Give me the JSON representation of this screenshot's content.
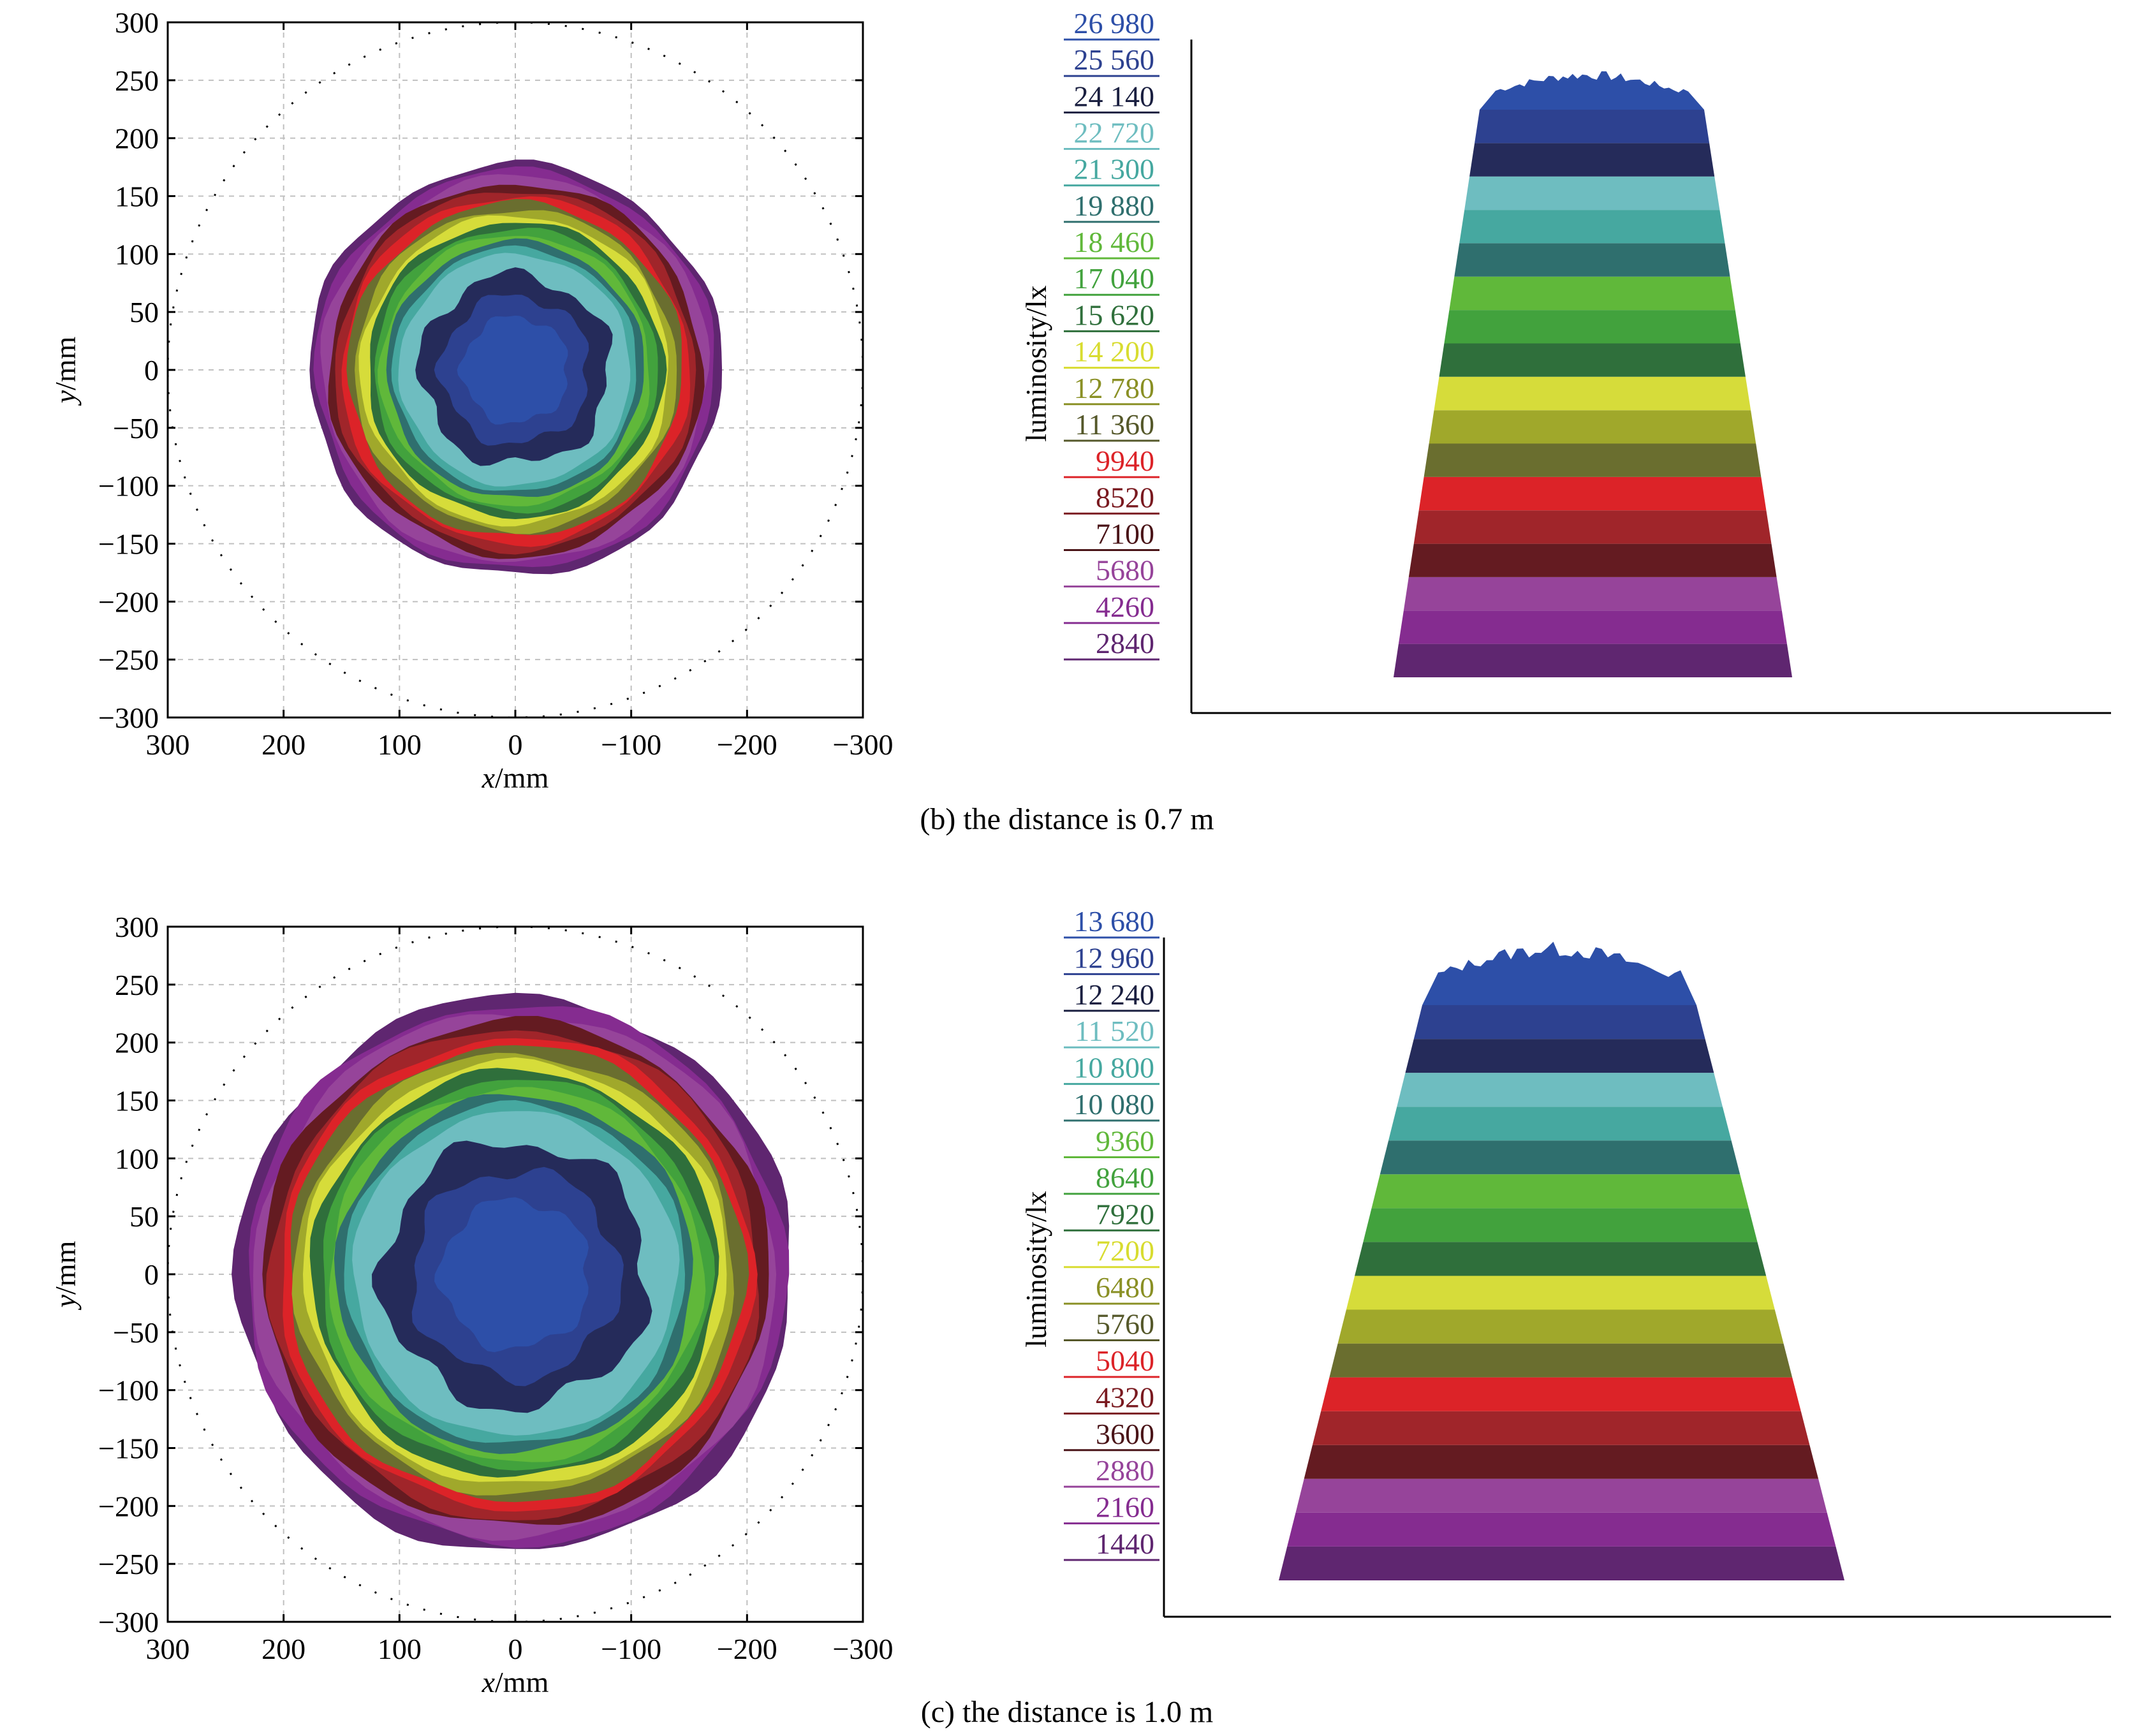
{
  "panels": [
    {
      "caption": "(b) the distance is 0.7 m",
      "contour": {
        "xlabel_var": "x",
        "xlabel_unit": "/mm",
        "ylabel_var": "y",
        "ylabel_unit": "/mm",
        "xlim": [
          300,
          -300
        ],
        "ylim": [
          -300,
          300
        ],
        "xticks": [
          300,
          200,
          100,
          0,
          -100,
          -200,
          -300
        ],
        "yticks": [
          300,
          250,
          200,
          150,
          100,
          50,
          0,
          -50,
          -100,
          -150,
          -200,
          -250,
          -300
        ],
        "xtick_labels": [
          "300",
          "200",
          "100",
          "0",
          "−100",
          "−200",
          "−300"
        ],
        "ytick_labels": [
          "300",
          "250",
          "200",
          "150",
          "100",
          "50",
          "0",
          "−50",
          "−100",
          "−150",
          "−200",
          "−250",
          "−300"
        ],
        "grid": true,
        "reference_circle_radius_mm": 300,
        "outer_radius_mm": 178,
        "inner_radius_mm": 100
      },
      "profile": {
        "ylabel": "luminosity/lx",
        "levels": [
          "2840",
          "4260",
          "5680",
          "7100",
          "8520",
          "9940",
          "11 360",
          "12 780",
          "14 200",
          "15 620",
          "17 040",
          "18 460",
          "19 880",
          "21 300",
          "22 720",
          "24 140",
          "25 560",
          "26 980"
        ],
        "level_values": [
          2840,
          4260,
          5680,
          7100,
          8520,
          9940,
          11360,
          12780,
          14200,
          15620,
          17040,
          18460,
          19880,
          21300,
          22720,
          24140,
          25560,
          26980
        ]
      }
    },
    {
      "caption": "(c) the distance is 1.0 m",
      "contour": {
        "xlabel_var": "x",
        "xlabel_unit": "/mm",
        "ylabel_var": "y",
        "ylabel_unit": "/mm",
        "xlim": [
          300,
          -300
        ],
        "ylim": [
          -300,
          300
        ],
        "xticks": [
          300,
          200,
          100,
          0,
          -100,
          -200,
          -300
        ],
        "yticks": [
          300,
          250,
          200,
          150,
          100,
          50,
          0,
          -50,
          -100,
          -150,
          -200,
          -250,
          -300
        ],
        "xtick_labels": [
          "300",
          "200",
          "100",
          "0",
          "−100",
          "−200",
          "−300"
        ],
        "ytick_labels": [
          "300",
          "250",
          "200",
          "150",
          "100",
          "50",
          "0",
          "−50",
          "−100",
          "−150",
          "−200",
          "−250",
          "−300"
        ],
        "grid": true,
        "reference_circle_radius_mm": 300,
        "outer_radius_mm": 240,
        "inner_radius_mm": 140
      },
      "profile": {
        "ylabel": "luminosity/lx",
        "levels": [
          "1440",
          "2160",
          "2880",
          "3600",
          "4320",
          "5040",
          "5760",
          "6480",
          "7200",
          "7920",
          "8640",
          "9360",
          "10 080",
          "10 800",
          "11 520",
          "12 240",
          "12 960",
          "13 680"
        ],
        "level_values": [
          1440,
          2160,
          2880,
          3600,
          4320,
          5040,
          5760,
          6480,
          7200,
          7920,
          8640,
          9360,
          10080,
          10800,
          11520,
          12240,
          12960,
          13680
        ]
      }
    }
  ],
  "colors": {
    "level_colors": [
      "#5f2670",
      "#852c90",
      "#96449a",
      "#641b21",
      "#a0252a",
      "#dc2328",
      "#6a6e2f",
      "#a0a82b",
      "#d6dc3a",
      "#2f6f3b",
      "#42a23d",
      "#60b83a",
      "#2f6f6e",
      "#46a8a0",
      "#6ebdc0",
      "#252b5a",
      "#2d4190",
      "#2d4fa8"
    ],
    "label_colors": [
      "#5f2670",
      "#852c90",
      "#96449a",
      "#4a1418",
      "#7a1a20",
      "#dc2328",
      "#55582a",
      "#8a9025",
      "#d8dc30",
      "#2f6f3b",
      "#42a23d",
      "#60b83a",
      "#2f6f6e",
      "#46a8a0",
      "#6ebdc0",
      "#1a1f40",
      "#2d4190",
      "#2d4fa8"
    ],
    "axis": "#000000",
    "grid": "#c0c0c0"
  },
  "chart_data": [
    {
      "type": "heatmap",
      "xlabel": "x/mm",
      "ylabel": "y/mm",
      "xlim": [
        300,
        -300
      ],
      "ylim": [
        -300,
        300
      ],
      "contour_levels": [
        2840,
        4260,
        5680,
        7100,
        8520,
        9940,
        11360,
        12780,
        14200,
        15620,
        17040,
        18460,
        19880,
        21300,
        22720,
        24140,
        25560,
        26980
      ],
      "grid": true
    },
    {
      "type": "area",
      "ylabel": "luminosity/lx",
      "levels": [
        2840,
        4260,
        5680,
        7100,
        8520,
        9940,
        11360,
        12780,
        14200,
        15620,
        17040,
        18460,
        19880,
        21300,
        22720,
        24140,
        25560,
        26980
      ]
    },
    {
      "type": "heatmap",
      "xlabel": "x/mm",
      "ylabel": "y/mm",
      "xlim": [
        300,
        -300
      ],
      "ylim": [
        -300,
        300
      ],
      "contour_levels": [
        1440,
        2160,
        2880,
        3600,
        4320,
        5040,
        5760,
        6480,
        7200,
        7920,
        8640,
        9360,
        10080,
        10800,
        11520,
        12240,
        12960,
        13680
      ],
      "grid": true
    },
    {
      "type": "area",
      "ylabel": "luminosity/lx",
      "levels": [
        1440,
        2160,
        2880,
        3600,
        4320,
        5040,
        5760,
        6480,
        7200,
        7920,
        8640,
        9360,
        10080,
        10800,
        11520,
        12240,
        12960,
        13680
      ]
    }
  ]
}
